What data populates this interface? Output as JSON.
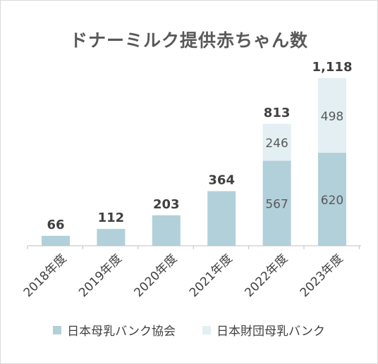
{
  "chart_data": {
    "type": "bar",
    "stacked": true,
    "title": "ドナーミルク提供赤ちゃん数",
    "categories": [
      "2018年度",
      "2019年度",
      "2020年度",
      "2021年度",
      "2022年度",
      "2023年度"
    ],
    "series": [
      {
        "name": "日本母乳バンク協会",
        "color": "#b1d0da",
        "values": [
          66,
          112,
          203,
          364,
          567,
          620
        ],
        "labels": [
          "",
          "",
          "",
          "",
          "567",
          "620"
        ]
      },
      {
        "name": "日本財団母乳バンク",
        "color": "#e3eff3",
        "values": [
          0,
          0,
          0,
          0,
          246,
          498
        ],
        "labels": [
          "",
          "",
          "",
          "",
          "246",
          "498"
        ]
      }
    ],
    "totals": [
      "66",
      "112",
      "203",
      "364",
      "813",
      "1,118"
    ],
    "ylim": [
      0,
      1200
    ],
    "grid": false,
    "legend": "bottom"
  }
}
